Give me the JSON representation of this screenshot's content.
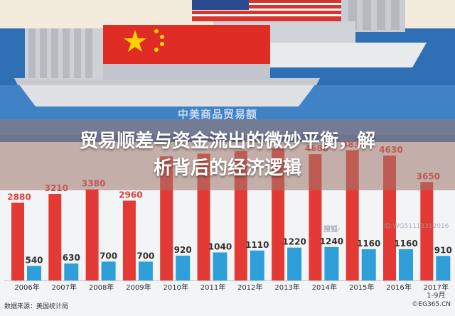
{
  "headline": {
    "line1": "贸易顺差与资金流出的微妙平衡，解",
    "line2": "析背后的经济逻辑"
  },
  "chart_title": "中美商品贸易额",
  "source": "数据来源：美国统计局",
  "watermark": {
    "logo": "搜狐·",
    "id": "ID:WG51113312016",
    "corner": "©EG365.CN"
  },
  "colors": {
    "export_bar": "#e33a35",
    "import_bar": "#2e9fd8",
    "sea": "#2f6fb6",
    "overlay": "#a0786e"
  },
  "chart_data": {
    "type": "bar",
    "title": "中美商品贸易额",
    "categories": [
      "2006年",
      "2007年",
      "2008年",
      "2009年",
      "2010年",
      "2011年",
      "2012年",
      "2013年",
      "2014年",
      "2015年",
      "2016年",
      "2017年 1-9月"
    ],
    "series": [
      {
        "name": "",
        "values": [
          2880,
          3210,
          3380,
          2960,
          null,
          null,
          null,
          null,
          4680,
          4830,
          4630,
          3650
        ]
      },
      {
        "name": "",
        "values": [
          540,
          630,
          700,
          700,
          920,
          1040,
          1110,
          1220,
          1240,
          1160,
          1160,
          910
        ]
      }
    ]
  }
}
